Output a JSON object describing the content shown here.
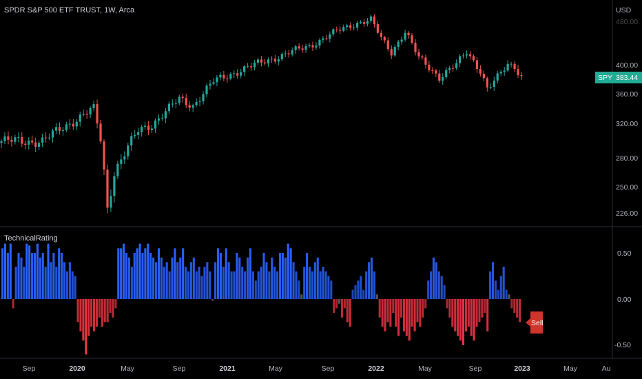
{
  "header": {
    "symbol_title": "SPDR S&P 500 ETF TRUST, 1W, Arca",
    "currency": "USD"
  },
  "price_axis": {
    "ticks": [
      "480.00",
      "400.00",
      "360.00",
      "320.00",
      "280.00",
      "250.00",
      "226.00"
    ]
  },
  "last_price": {
    "symbol": "SPY",
    "value": "383.44"
  },
  "indicator": {
    "title": "TechnicalRating",
    "ticks": [
      "0.50",
      "0.00",
      "-0.50"
    ],
    "signal_label": "Sell"
  },
  "time_axis": {
    "labels": [
      {
        "text": "Sep",
        "bold": false
      },
      {
        "text": "2020",
        "bold": true
      },
      {
        "text": "May",
        "bold": false
      },
      {
        "text": "Sep",
        "bold": false
      },
      {
        "text": "2021",
        "bold": true
      },
      {
        "text": "May",
        "bold": false
      },
      {
        "text": "Sep",
        "bold": false
      },
      {
        "text": "2022",
        "bold": true
      },
      {
        "text": "May",
        "bold": false
      },
      {
        "text": "Sep",
        "bold": false
      },
      {
        "text": "2023",
        "bold": true
      },
      {
        "text": "May",
        "bold": false
      },
      {
        "text": "Au",
        "bold": false
      }
    ]
  },
  "colors": {
    "up": "#26a69a",
    "down": "#ef5350",
    "buy_bar": "#2962ff",
    "sell_bar": "#f23645",
    "neutral_bar": "#787b86",
    "badge": "#22ab94",
    "sell_badge": "#d0342c"
  },
  "chart_data": [
    {
      "type": "candlestick",
      "title": "SPDR S&P 500 ETF TRUST, 1W, Arca",
      "ylabel": "USD",
      "y_ticks": [
        226,
        250,
        280,
        320,
        360,
        400,
        480
      ],
      "ylim": [
        215,
        490
      ],
      "x_tick_labels": [
        "Sep",
        "2020",
        "May",
        "Sep",
        "2021",
        "May",
        "Sep",
        "2022",
        "May",
        "Sep",
        "2023",
        "May",
        "Au"
      ],
      "keypoints": [
        {
          "week": 0,
          "close": 298
        },
        {
          "week": 12,
          "close": 298
        },
        {
          "week": 24,
          "close": 330
        },
        {
          "week": 27,
          "close": 337
        },
        {
          "week": 29,
          "close": 300
        },
        {
          "week": 31,
          "close": 230
        },
        {
          "week": 33,
          "close": 265
        },
        {
          "week": 40,
          "close": 310
        },
        {
          "week": 44,
          "close": 318
        },
        {
          "week": 52,
          "close": 350
        },
        {
          "week": 56,
          "close": 342
        },
        {
          "week": 62,
          "close": 375
        },
        {
          "week": 70,
          "close": 392
        },
        {
          "week": 82,
          "close": 415
        },
        {
          "week": 90,
          "close": 430
        },
        {
          "week": 98,
          "close": 455
        },
        {
          "week": 104,
          "close": 470
        },
        {
          "week": 108,
          "close": 476
        },
        {
          "week": 111,
          "close": 442
        },
        {
          "week": 114,
          "close": 420
        },
        {
          "week": 118,
          "close": 455
        },
        {
          "week": 122,
          "close": 410
        },
        {
          "week": 128,
          "close": 382
        },
        {
          "week": 133,
          "close": 400
        },
        {
          "week": 136,
          "close": 420
        },
        {
          "week": 140,
          "close": 392
        },
        {
          "week": 142,
          "close": 365
        },
        {
          "week": 145,
          "close": 380
        },
        {
          "week": 148,
          "close": 400
        },
        {
          "week": 150,
          "close": 398
        },
        {
          "week": 152,
          "close": 383
        }
      ],
      "last_value": 383.44
    },
    {
      "type": "bar",
      "title": "TechnicalRating",
      "y_ticks": [
        -0.5,
        0.0,
        0.5
      ],
      "ylim": [
        -0.6,
        0.72
      ],
      "values": [
        0.55,
        0.6,
        0.5,
        0.6,
        -0.1,
        0.35,
        0.5,
        0.45,
        0.35,
        0.6,
        0.58,
        0.5,
        0.5,
        0.6,
        0.45,
        0.5,
        0.35,
        0.6,
        0.4,
        0.5,
        0.35,
        0.55,
        0.5,
        0.4,
        0.3,
        0.4,
        0.3,
        0.25,
        -0.25,
        -0.35,
        -0.45,
        -0.6,
        -0.4,
        -0.3,
        -0.35,
        -0.3,
        -0.2,
        -0.3,
        -0.25,
        -0.25,
        -0.15,
        -0.2,
        -0.1,
        0.55,
        0.55,
        0.6,
        0.5,
        0.45,
        0.35,
        0.5,
        0.55,
        0.6,
        0.5,
        0.55,
        0.6,
        0.5,
        0.45,
        0.4,
        0.55,
        0.45,
        0.35,
        0.4,
        0.3,
        0.45,
        0.55,
        0.4,
        0.45,
        0.55,
        0.35,
        0.3,
        0.4,
        0.45,
        0.3,
        0.35,
        0.25,
        0.35,
        0.4,
        0.3,
        -0.02,
        0.4,
        0.55,
        0.5,
        0.35,
        0.55,
        0.4,
        0.3,
        0.3,
        0.5,
        0.45,
        0.35,
        0.3,
        0.45,
        0.55,
        0.3,
        0.2,
        0.3,
        0.35,
        0.5,
        0.4,
        0.3,
        0.45,
        0.35,
        0.3,
        0.5,
        0.5,
        0.45,
        0.6,
        0.55,
        0.4,
        0.3,
        0.2,
        0.05,
        0.35,
        0.5,
        0.35,
        0.3,
        0.4,
        0.45,
        0.3,
        0.35,
        0.3,
        0.25,
        0.2,
        -0.15,
        -0.1,
        -0.05,
        -0.2,
        -0.1,
        -0.25,
        -0.3,
        0.1,
        0.15,
        0.2,
        0.25,
        0.1,
        0.3,
        0.4,
        0.45,
        0.3,
        0.05,
        -0.2,
        -0.3,
        -0.35,
        -0.25,
        -0.3,
        -0.15,
        -0.3,
        -0.4,
        -0.2,
        -0.35,
        -0.4,
        -0.45,
        -0.3,
        -0.35,
        -0.25,
        -0.3,
        -0.2,
        -0.1,
        0.2,
        0.3,
        0.45,
        0.4,
        0.3,
        0.25,
        0.15,
        -0.1,
        -0.2,
        -0.3,
        -0.35,
        -0.4,
        -0.45,
        -0.5,
        -0.35,
        -0.3,
        -0.4,
        -0.45,
        -0.3,
        -0.25,
        -0.2,
        -0.15,
        -0.35,
        0.3,
        0.4,
        0.2,
        0.1,
        0.25,
        0.35,
        0.1,
        0.05,
        -0.1,
        -0.15,
        -0.2,
        -0.25
      ]
    }
  ]
}
